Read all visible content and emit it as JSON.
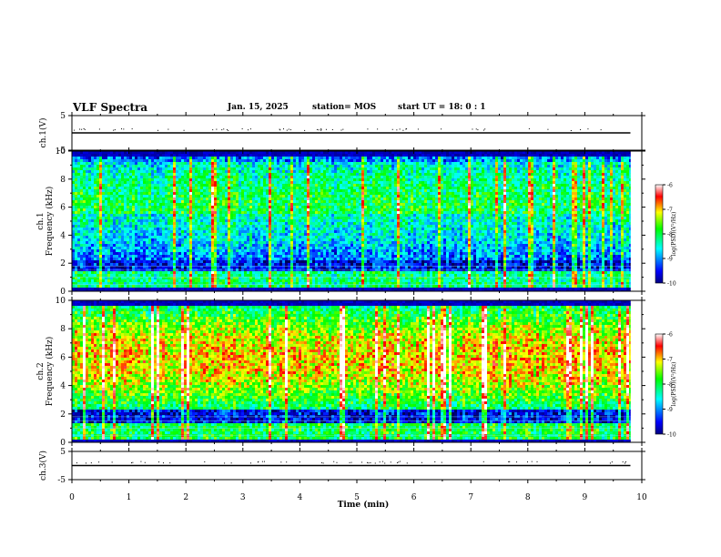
{
  "header": {
    "title": "VLF Spectra",
    "date": "Jan. 15, 2025",
    "station": "station= MOS",
    "start": "start  UT  =   18: 0  : 1"
  },
  "chart_data": [
    {
      "type": "line",
      "panel": "ch1-voltage",
      "ylabel": "ch.1(V)",
      "ylim": [
        -5,
        5
      ],
      "yticks": [
        "5",
        "-5"
      ],
      "xlim": [
        0,
        10
      ],
      "series": [
        {
          "x": [
            0,
            9.8
          ],
          "y": [
            0,
            0
          ]
        }
      ]
    },
    {
      "type": "heatmap",
      "panel": "ch1-spectrogram",
      "ylabel": "ch.1\nFrequency (kHz)",
      "ylim": [
        0,
        10
      ],
      "yticks": [
        "0",
        "2",
        "4",
        "6",
        "8",
        "10"
      ],
      "xlim": [
        0,
        10
      ],
      "data_end_min": 9.8,
      "intensity_profile": {
        "upper_band_khz": [
          3,
          9.5
        ],
        "level": "medium",
        "lower_band_khz": [
          0.2,
          1.3
        ]
      },
      "colorbar": {
        "label": "log(PSD)(V²/Hz)",
        "range": [
          -10,
          -6
        ],
        "ticks": [
          "-6",
          "-7",
          "-8",
          "-9",
          "-10"
        ]
      }
    },
    {
      "type": "heatmap",
      "panel": "ch2-spectrogram",
      "ylabel": "ch.2\nFrequency (kHz)",
      "ylim": [
        0,
        10
      ],
      "yticks": [
        "0",
        "2",
        "4",
        "6",
        "8",
        "10"
      ],
      "xlim": [
        0,
        10
      ],
      "data_end_min": 9.8,
      "intensity_profile": {
        "upper_band_khz": [
          2.5,
          9.5
        ],
        "level": "high",
        "lower_band_khz": [
          0.2,
          1.3
        ]
      },
      "colorbar": {
        "label": "log(PSD)(V²/Hz)",
        "range": [
          -10,
          -6
        ],
        "ticks": [
          "-6",
          "-7",
          "-8",
          "-9",
          "-10"
        ]
      }
    },
    {
      "type": "line",
      "panel": "ch3-voltage",
      "ylabel": "ch.3(V)",
      "ylim": [
        -5,
        5
      ],
      "yticks": [
        "5",
        "-5"
      ],
      "xlim": [
        0,
        10
      ],
      "xlabel": "Time  (min)",
      "xticks": [
        "0",
        "1",
        "2",
        "3",
        "4",
        "5",
        "6",
        "7",
        "8",
        "9",
        "10"
      ],
      "series": [
        {
          "x": [
            0,
            9.8
          ],
          "y": [
            0,
            0
          ]
        }
      ]
    }
  ]
}
